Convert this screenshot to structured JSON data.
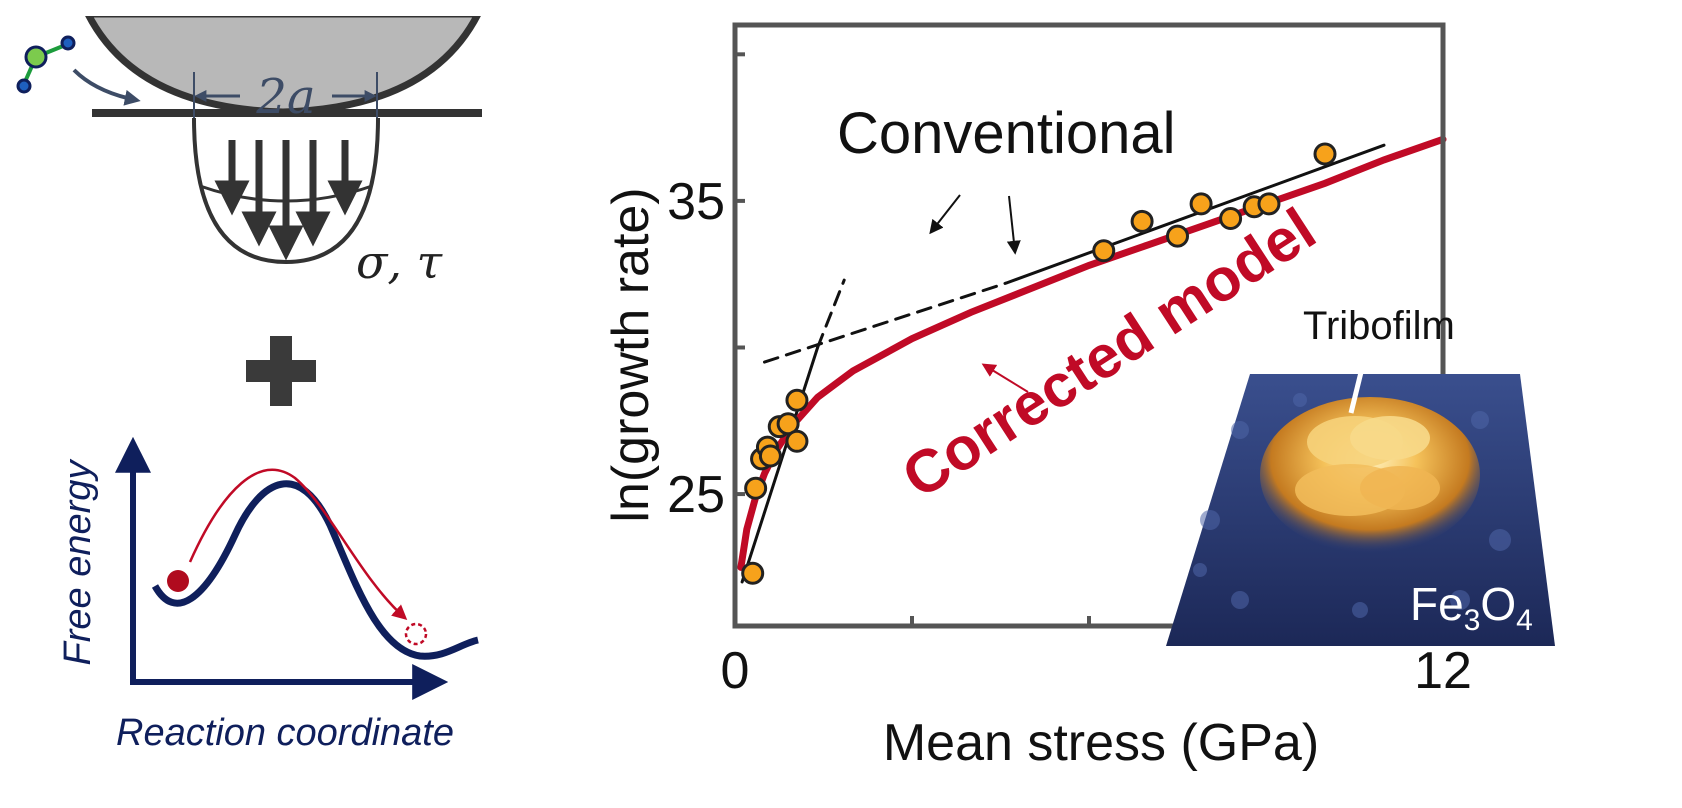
{
  "colors": {
    "navy": "#0f1f5c",
    "red": "#c00a26",
    "orange": "#f7a21b",
    "dark": "#2a2a2a",
    "slate": "#3d4c66",
    "gray_sphere": "#b8b8b8"
  },
  "schematic": {
    "contact_width_label": "2a",
    "stress_label": "σ, τ",
    "plus_label": "+",
    "energy_ylabel": "Free energy",
    "energy_xlabel": "Reaction coordinate"
  },
  "inset": {
    "tribofilm_label": "Tribofilm",
    "material_base": "Fe",
    "material_sub1": "3",
    "material_mid": "O",
    "material_sub2": "4"
  },
  "chart_data": {
    "type": "scatter",
    "xlabel": "Mean stress (GPa)",
    "ylabel": "ln(growth rate)",
    "xlim": [
      0,
      12
    ],
    "ylim": [
      20.5,
      41
    ],
    "x_ticks": [
      0,
      3,
      6,
      9,
      12
    ],
    "x_tick_labels": [
      "0",
      "",
      "",
      "",
      "12"
    ],
    "y_ticks": [
      25,
      30,
      35,
      40
    ],
    "y_tick_labels": [
      "25",
      "",
      "35",
      ""
    ],
    "annotations": {
      "conventional": "Conventional",
      "corrected": "Corrected model"
    },
    "points": [
      {
        "x": 0.3,
        "y": 22.3
      },
      {
        "x": 0.35,
        "y": 25.2
      },
      {
        "x": 0.45,
        "y": 26.2
      },
      {
        "x": 0.55,
        "y": 26.6
      },
      {
        "x": 0.6,
        "y": 26.3
      },
      {
        "x": 0.75,
        "y": 27.3
      },
      {
        "x": 0.9,
        "y": 27.4
      },
      {
        "x": 1.05,
        "y": 26.8
      },
      {
        "x": 1.05,
        "y": 28.2
      },
      {
        "x": 6.25,
        "y": 33.3
      },
      {
        "x": 6.9,
        "y": 34.3
      },
      {
        "x": 7.5,
        "y": 33.8
      },
      {
        "x": 7.9,
        "y": 34.9
      },
      {
        "x": 8.4,
        "y": 34.4
      },
      {
        "x": 8.8,
        "y": 34.8
      },
      {
        "x": 9.05,
        "y": 34.9
      },
      {
        "x": 10.0,
        "y": 36.6
      }
    ],
    "series": [
      {
        "name": "Conventional fit (high-stress)",
        "style": "solid-black",
        "x": [
          4.6,
          11.0
        ],
        "y": [
          32.2,
          36.9
        ]
      },
      {
        "name": "Conventional extrapolation (high-stress)",
        "style": "dashed-black",
        "x": [
          0.5,
          4.6
        ],
        "y": [
          29.5,
          32.2
        ]
      },
      {
        "name": "Conventional fit (low-stress)",
        "style": "solid-black",
        "x": [
          0.12,
          1.4
        ],
        "y": [
          22.0,
          30.0
        ]
      },
      {
        "name": "Conventional extrapolation (low-stress)",
        "style": "dashed-black",
        "x": [
          1.4,
          1.85
        ],
        "y": [
          30.0,
          32.3
        ]
      },
      {
        "name": "Corrected model",
        "style": "solid-red",
        "x": [
          0.1,
          0.2,
          0.35,
          0.5,
          0.7,
          1.0,
          1.4,
          2.0,
          3.0,
          4.0,
          5.0,
          6.0,
          7.0,
          8.0,
          9.0,
          10.0,
          11.0,
          12.0
        ],
        "y": [
          22.5,
          23.8,
          24.9,
          25.7,
          26.5,
          27.4,
          28.3,
          29.2,
          30.3,
          31.2,
          32.0,
          32.8,
          33.5,
          34.2,
          34.9,
          35.6,
          36.4,
          37.1
        ]
      }
    ]
  }
}
